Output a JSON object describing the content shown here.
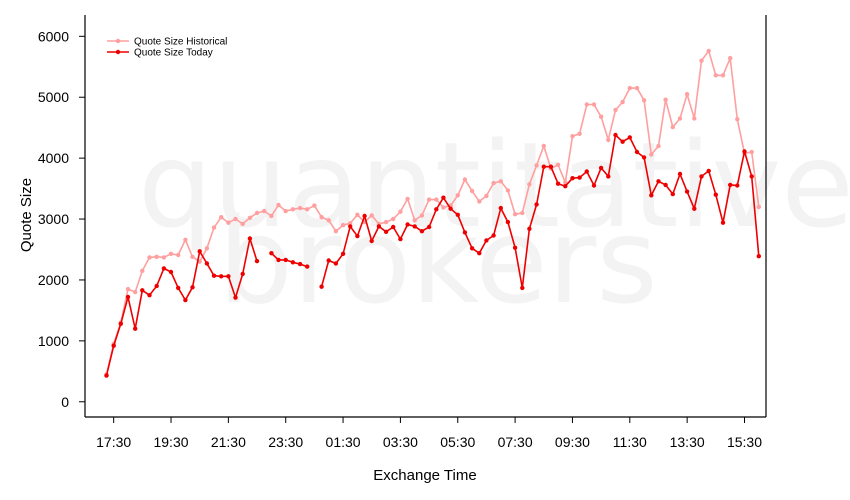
{
  "watermark": {
    "line1": "quantitative",
    "line2": "brokers"
  },
  "chart_data": {
    "type": "line",
    "title": "",
    "xlabel": "Exchange Time",
    "ylabel": "Quote Size",
    "ylim": [
      -250,
      6350
    ],
    "yticks": [
      0,
      1000,
      2000,
      3000,
      4000,
      5000,
      6000
    ],
    "x_ticks": [
      {
        "label": "17:30",
        "index": 1
      },
      {
        "label": "19:30",
        "index": 9
      },
      {
        "label": "21:30",
        "index": 17
      },
      {
        "label": "23:30",
        "index": 25
      },
      {
        "label": "01:30",
        "index": 33
      },
      {
        "label": "03:30",
        "index": 41
      },
      {
        "label": "05:30",
        "index": 49
      },
      {
        "label": "07:30",
        "index": 57
      },
      {
        "label": "09:30",
        "index": 65
      },
      {
        "label": "11:30",
        "index": 73
      },
      {
        "label": "13:30",
        "index": 81
      },
      {
        "label": "15:30",
        "index": 89
      }
    ],
    "x_range": [
      -3,
      92
    ],
    "x_start_index": 0,
    "x_interval_minutes": 15,
    "grid": false,
    "legend_position": "top-left",
    "series": [
      {
        "name": "Quote Size Historical",
        "color": "#ff9f9f",
        "values": [
          450,
          950,
          1300,
          1850,
          1800,
          2150,
          2370,
          2380,
          2370,
          2430,
          2410,
          2660,
          2380,
          2300,
          2520,
          2860,
          3030,
          2940,
          3000,
          2920,
          3020,
          3100,
          3130,
          3050,
          3230,
          3130,
          3160,
          3180,
          3160,
          3220,
          3030,
          2980,
          2800,
          2900,
          2930,
          3070,
          2950,
          3060,
          2920,
          2950,
          3000,
          3120,
          3330,
          2980,
          3060,
          3320,
          3320,
          3190,
          3220,
          3390,
          3650,
          3460,
          3290,
          3380,
          3590,
          3620,
          3470,
          3080,
          3100,
          3570,
          3880,
          4200,
          3830,
          3890,
          3600,
          4360,
          4400,
          4880,
          4880,
          4680,
          4300,
          4790,
          4920,
          5150,
          5150,
          4950,
          4060,
          4200,
          4960,
          4510,
          4650,
          5050,
          4650,
          5600,
          5760,
          5360,
          5360,
          5640,
          4640,
          4080,
          4100,
          3200
        ],
        "values_readability_note": null
      },
      {
        "name": "Quote Size Today",
        "color": "#ee0000",
        "values": [
          430,
          920,
          1280,
          1720,
          1200,
          1830,
          1750,
          1900,
          2190,
          2130,
          1870,
          1670,
          1880,
          2470,
          2270,
          2070,
          2060,
          2060,
          1710,
          2100,
          2680,
          2310,
          null,
          2440,
          2330,
          2330,
          2290,
          2260,
          2220,
          null,
          1890,
          2320,
          2270,
          2430,
          2880,
          2720,
          3050,
          2640,
          2880,
          2790,
          2870,
          2670,
          2910,
          2880,
          2800,
          2870,
          3160,
          3350,
          3170,
          3070,
          2780,
          2520,
          2440,
          2650,
          2730,
          3180,
          2950,
          2530,
          1870,
          2840,
          3240,
          3860,
          3860,
          3580,
          3540,
          3670,
          3680,
          3780,
          3550,
          3840,
          3700,
          4380,
          4270,
          4340,
          4100,
          4010,
          3390,
          3620,
          3560,
          3410,
          3740,
          3450,
          3170,
          3700,
          3790,
          3400,
          2940,
          3560,
          3550,
          4110,
          3700,
          2390
        ]
      }
    ]
  }
}
